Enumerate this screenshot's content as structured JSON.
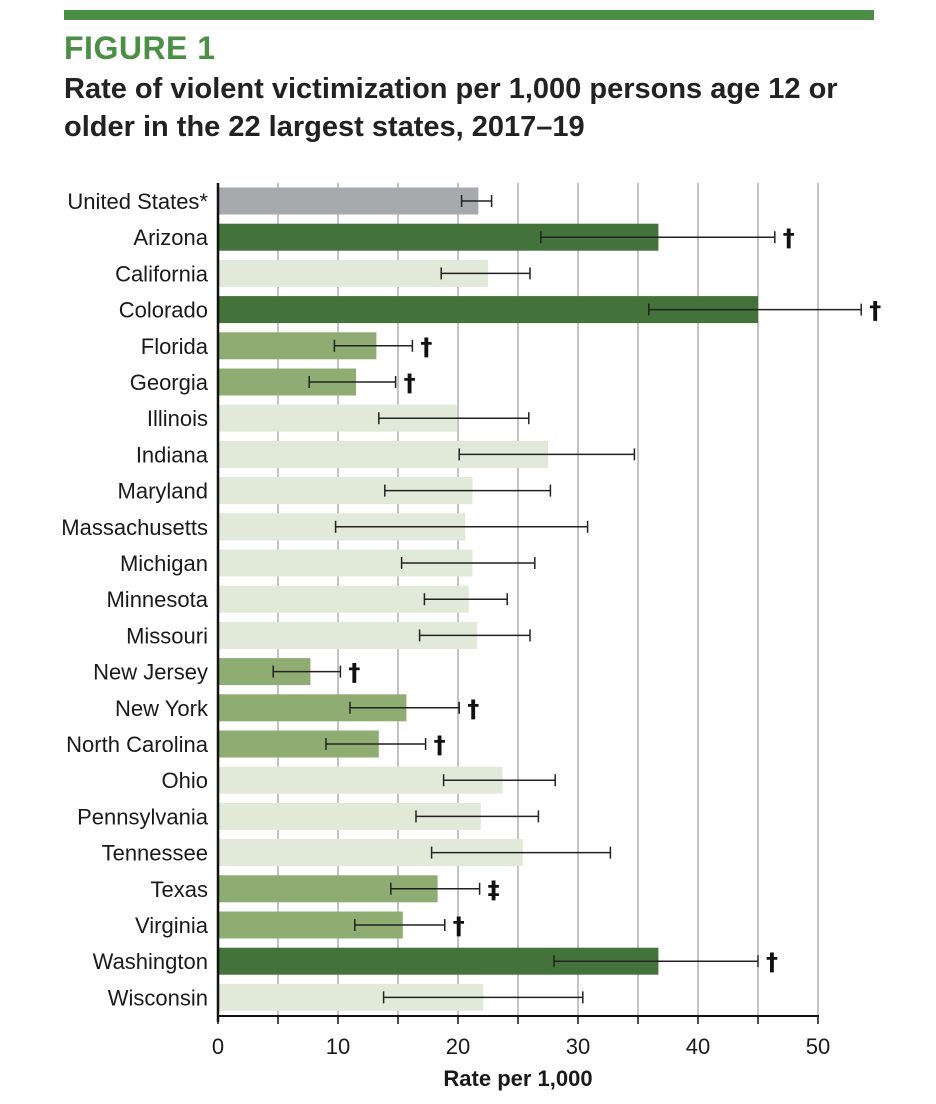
{
  "figure": {
    "label": "FIGURE 1",
    "title": "Rate of violent victimization per 1,000 persons age 12 or older in the 22 largest states, 2017–19"
  },
  "colors": {
    "rule": "#4a8f44",
    "label": "#4a8f44",
    "us": "#a7a9ac",
    "higher": "#43733a",
    "lower": "#8fac72",
    "not_different": "#e1e9d8",
    "grid": "#8a8a8a",
    "error_bar": "#222222"
  },
  "chart_data": {
    "type": "bar",
    "orientation": "horizontal",
    "title": "Rate of violent victimization per 1,000 persons age 12 or older in the 22 largest states, 2017–19",
    "xlabel": "Rate per 1,000",
    "ylabel": "",
    "xlim": [
      0,
      50
    ],
    "xticks": [
      0,
      10,
      20,
      30,
      40,
      50
    ],
    "grid": true,
    "legend": "none",
    "categories": [
      "United States*",
      "Arizona",
      "California",
      "Colorado",
      "Florida",
      "Georgia",
      "Illinois",
      "Indiana",
      "Maryland",
      "Massachusetts",
      "Michigan",
      "Minnesota",
      "Missouri",
      "New Jersey",
      "New York",
      "North Carolina",
      "Ohio",
      "Pennsylvania",
      "Tennessee",
      "Texas",
      "Virginia",
      "Washington",
      "Wisconsin"
    ],
    "values": [
      21.7,
      36.7,
      22.5,
      45.0,
      13.2,
      11.5,
      19.9,
      27.5,
      21.2,
      20.6,
      21.2,
      20.9,
      21.6,
      7.7,
      15.7,
      13.4,
      23.7,
      21.9,
      25.4,
      18.3,
      15.4,
      36.7,
      22.1
    ],
    "ci_low": [
      20.3,
      26.9,
      18.6,
      35.9,
      9.7,
      7.6,
      13.4,
      20.1,
      13.9,
      9.8,
      15.3,
      17.2,
      16.8,
      4.6,
      11.0,
      9.0,
      18.8,
      16.5,
      17.8,
      14.4,
      11.4,
      28.0,
      13.8
    ],
    "ci_high": [
      22.8,
      46.4,
      26.0,
      53.6,
      16.2,
      14.8,
      25.9,
      34.7,
      27.7,
      30.8,
      26.4,
      24.1,
      26.0,
      10.2,
      20.1,
      17.3,
      28.1,
      26.7,
      32.7,
      21.8,
      18.9,
      45.0,
      30.4
    ],
    "significance_group": [
      "us",
      "higher",
      "not_different",
      "higher",
      "lower",
      "lower",
      "not_different",
      "not_different",
      "not_different",
      "not_different",
      "not_different",
      "not_different",
      "not_different",
      "lower",
      "lower",
      "lower",
      "not_different",
      "not_different",
      "not_different",
      "lower",
      "lower",
      "higher",
      "not_different"
    ],
    "markers": [
      "",
      "†",
      "",
      "†",
      "†",
      "†",
      "",
      "",
      "",
      "",
      "",
      "",
      "",
      "†",
      "†",
      "†",
      "",
      "",
      "",
      "‡",
      "†",
      "†",
      ""
    ]
  }
}
